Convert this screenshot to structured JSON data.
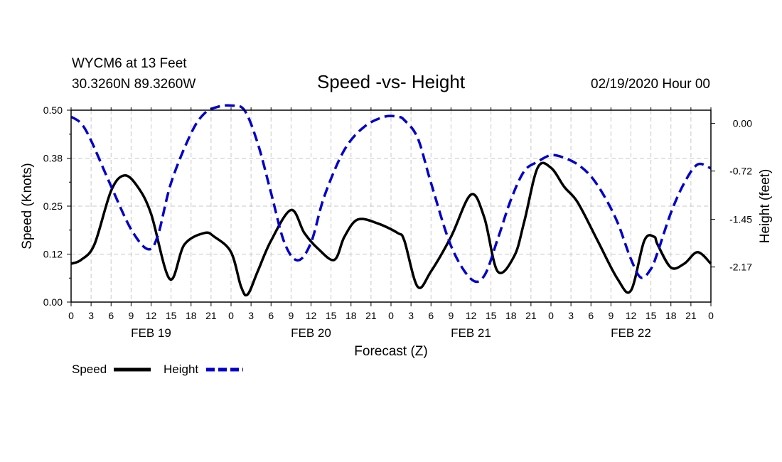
{
  "chart_data": {
    "type": "line",
    "title": "Speed -vs- Height",
    "header": {
      "station": "WYCM6 at 13 Feet",
      "coords": "30.3260N 89.3260W",
      "run": "02/19/2020 Hour 00"
    },
    "xlabel": "Forecast (Z)",
    "ylabel_left": "Speed (Knots)",
    "ylabel_right": "Height (feet)",
    "xlim_hours": [
      0,
      96
    ],
    "ylim_left": [
      0,
      0.5
    ],
    "ylim_right": [
      -2.7,
      0.2
    ],
    "y_ticks_left": [
      "0.00",
      "0.12",
      "0.25",
      "0.38",
      "0.50"
    ],
    "y_ticks_left_values": [
      0,
      0.125,
      0.25,
      0.375,
      0.5
    ],
    "y_ticks_right": [
      "0.00",
      "-0.72",
      "-1.45",
      "-2.17"
    ],
    "y_ticks_right_values": [
      0,
      -0.72,
      -1.45,
      -2.17
    ],
    "x_tick_labels": [
      "0",
      "3",
      "6",
      "9",
      "12",
      "15",
      "18",
      "21",
      "0",
      "3",
      "6",
      "9",
      "12",
      "15",
      "18",
      "21",
      "0",
      "3",
      "6",
      "9",
      "12",
      "15",
      "18",
      "21",
      "0",
      "3",
      "6",
      "9",
      "12",
      "15",
      "18",
      "21",
      "0"
    ],
    "date_labels": [
      {
        "label": "FEB 19",
        "hour": 12
      },
      {
        "label": "FEB 20",
        "hour": 36
      },
      {
        "label": "FEB 21",
        "hour": 60
      },
      {
        "label": "FEB 22",
        "hour": 84
      }
    ],
    "grid": true,
    "legend": [
      {
        "name": "Speed",
        "color": "#000000",
        "style": "solid"
      },
      {
        "name": "Height",
        "color": "#0000cc",
        "style": "dashed"
      }
    ],
    "series": [
      {
        "name": "Speed",
        "axis": "left",
        "color": "#000000",
        "hours": [
          0,
          1.5,
          3.5,
          6,
          8,
          10,
          12,
          14.8,
          17,
          20,
          21.5,
          24,
          25.5,
          26.5,
          28,
          30,
          33,
          35,
          37,
          39.5,
          41,
          43,
          46,
          49,
          50,
          52,
          54,
          57,
          60,
          62,
          64,
          66.5,
          68,
          70,
          72,
          74,
          76,
          79,
          82,
          84,
          86,
          87.5,
          88,
          90,
          92,
          94,
          96
        ],
        "values": [
          0.1,
          0.11,
          0.15,
          0.29,
          0.33,
          0.3,
          0.23,
          0.06,
          0.15,
          0.18,
          0.17,
          0.13,
          0.04,
          0.02,
          0.08,
          0.16,
          0.24,
          0.18,
          0.14,
          0.11,
          0.17,
          0.215,
          0.205,
          0.18,
          0.16,
          0.04,
          0.08,
          0.17,
          0.28,
          0.22,
          0.08,
          0.12,
          0.21,
          0.35,
          0.35,
          0.3,
          0.26,
          0.16,
          0.06,
          0.03,
          0.16,
          0.17,
          0.15,
          0.09,
          0.1,
          0.13,
          0.1
        ]
      },
      {
        "name": "Height",
        "axis": "right",
        "color": "#0000cc",
        "hours": [
          0,
          1.5,
          3,
          6,
          9,
          11.5,
          13,
          15,
          18,
          20,
          22,
          24,
          26,
          28,
          30,
          32,
          34,
          36,
          38,
          41,
          44,
          47,
          49,
          50,
          52,
          54,
          57,
          60,
          62,
          64,
          66,
          68,
          70,
          72,
          74,
          76,
          78,
          80,
          82,
          84,
          85.5,
          87,
          88,
          90,
          92,
          94,
          96
        ],
        "values": [
          0.1,
          0,
          -0.26,
          -0.95,
          -1.6,
          -1.9,
          -1.7,
          -0.9,
          -0.15,
          0.15,
          0.25,
          0.27,
          0.2,
          -0.3,
          -1.05,
          -1.8,
          -2.07,
          -1.8,
          -1.1,
          -0.4,
          -0.05,
          0.1,
          0.1,
          0.05,
          -0.22,
          -0.9,
          -1.85,
          -2.35,
          -2.3,
          -1.75,
          -1.15,
          -0.72,
          -0.58,
          -0.48,
          -0.52,
          -0.62,
          -0.8,
          -1.1,
          -1.5,
          -2.05,
          -2.33,
          -2.2,
          -1.95,
          -1.35,
          -0.9,
          -0.62,
          -0.68
        ]
      }
    ]
  }
}
